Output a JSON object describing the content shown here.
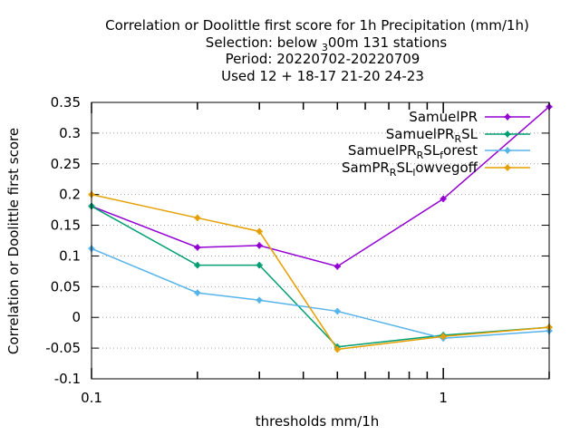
{
  "chart_data": {
    "type": "line",
    "title_lines": [
      "Correlation or Doolittle first score  for 1h Precipitation (mm/1h)",
      "Selection: below ₃ 00m    131 stations",
      "Period: 20220702-20220709",
      "Used  12 + 18-17 21-20 24-23"
    ],
    "xlabel": "thresholds mm/1h",
    "ylabel": "Correlation or Doolittle first score",
    "x_scale": "log",
    "xlim": [
      0.1,
      2
    ],
    "ylim": [
      -0.1,
      0.35
    ],
    "x_ticks": [
      {
        "value": 0.1,
        "label": "0.1"
      },
      {
        "value": 1,
        "label": "1"
      }
    ],
    "y_ticks": [
      {
        "value": -0.1,
        "label": "-0.1"
      },
      {
        "value": -0.05,
        "label": "-0.05"
      },
      {
        "value": 0,
        "label": "0"
      },
      {
        "value": 0.05,
        "label": "0.05"
      },
      {
        "value": 0.1,
        "label": "0.1"
      },
      {
        "value": 0.15,
        "label": "0.15"
      },
      {
        "value": 0.2,
        "label": "0.2"
      },
      {
        "value": 0.25,
        "label": "0.25"
      },
      {
        "value": 0.3,
        "label": "0.3"
      },
      {
        "value": 0.35,
        "label": "0.35"
      }
    ],
    "grid": true,
    "legend_position": "top-right",
    "x": [
      0.1,
      0.2,
      0.3,
      0.5,
      1,
      2
    ],
    "series": [
      {
        "name": "SamuelPR",
        "color": "#9400d3",
        "values": [
          0.181,
          0.114,
          0.117,
          0.083,
          0.193,
          0.343
        ]
      },
      {
        "name": "SamuelPRₒSL",
        "color": "#009e73",
        "values": [
          0.181,
          0.085,
          0.085,
          -0.048,
          -0.029,
          -0.016
        ]
      },
      {
        "name": "SamuelPRₒSLₓorest",
        "color": "#56b4e9",
        "values": [
          0.112,
          0.04,
          0.028,
          0.01,
          -0.034,
          -0.022
        ]
      },
      {
        "name": "SamPRₒSLₓowvegoff",
        "color": "#e69f00",
        "values": [
          0.2,
          0.162,
          0.14,
          -0.052,
          -0.031,
          -0.016
        ]
      }
    ]
  }
}
